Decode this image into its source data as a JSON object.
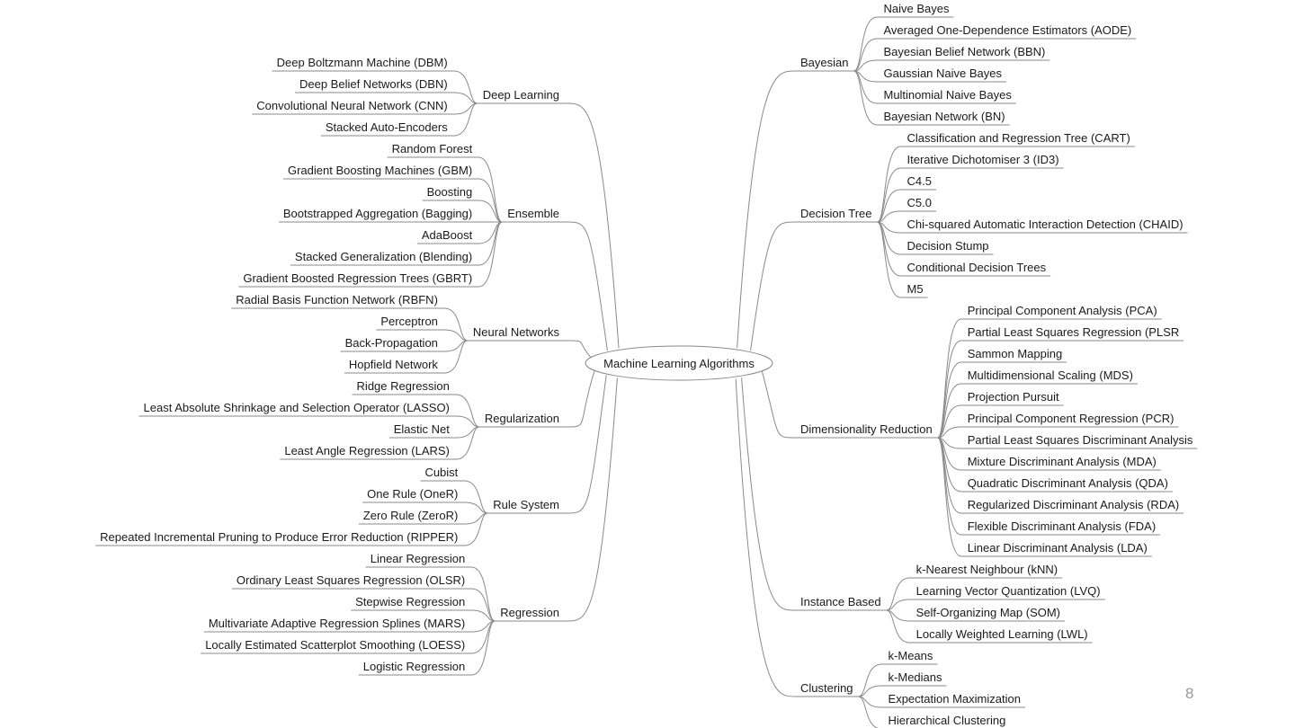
{
  "root": "Machine Learning Algorithms",
  "page_number": "8",
  "colors": {
    "line": "#8a8a8a",
    "text": "#1a1a1a"
  },
  "left": [
    {
      "label": "Deep Learning",
      "children": [
        "Deep Boltzmann Machine (DBM)",
        "Deep Belief Networks (DBN)",
        "Convolutional Neural Network (CNN)",
        "Stacked Auto-Encoders"
      ]
    },
    {
      "label": "Ensemble",
      "children": [
        "Random Forest",
        "Gradient Boosting Machines (GBM)",
        "Boosting",
        "Bootstrapped Aggregation (Bagging)",
        "AdaBoost",
        "Stacked Generalization (Blending)",
        "Gradient Boosted Regression Trees (GBRT)"
      ]
    },
    {
      "label": "Neural Networks",
      "children": [
        "Radial Basis Function Network (RBFN)",
        "Perceptron",
        "Back-Propagation",
        "Hopfield Network"
      ]
    },
    {
      "label": "Regularization",
      "children": [
        "Ridge Regression",
        "Least Absolute Shrinkage and Selection Operator (LASSO)",
        "Elastic Net",
        "Least Angle Regression (LARS)"
      ]
    },
    {
      "label": "Rule System",
      "children": [
        "Cubist",
        "One Rule (OneR)",
        "Zero Rule (ZeroR)",
        "Repeated Incremental Pruning to Produce Error Reduction (RIPPER)"
      ]
    },
    {
      "label": "Regression",
      "children": [
        "Linear Regression",
        "Ordinary Least Squares Regression (OLSR)",
        "Stepwise Regression",
        "Multivariate Adaptive Regression Splines (MARS)",
        "Locally Estimated Scatterplot Smoothing (LOESS)",
        "Logistic Regression"
      ]
    }
  ],
  "right": [
    {
      "label": "Bayesian",
      "children": [
        "Naive Bayes",
        "Averaged One-Dependence Estimators (AODE)",
        "Bayesian Belief Network (BBN)",
        "Gaussian Naive Bayes",
        "Multinomial Naive Bayes",
        "Bayesian Network (BN)"
      ]
    },
    {
      "label": "Decision Tree",
      "children": [
        "Classification and Regression Tree (CART)",
        "Iterative Dichotomiser 3 (ID3)",
        "C4.5",
        "C5.0",
        "Chi-squared Automatic Interaction Detection (CHAID)",
        "Decision Stump",
        "Conditional Decision Trees",
        "M5"
      ]
    },
    {
      "label": "Dimensionality Reduction",
      "children": [
        "Principal Component Analysis (PCA)",
        "Partial Least Squares Regression (PLSR",
        "Sammon Mapping",
        "Multidimensional Scaling (MDS)",
        "Projection Pursuit",
        "Principal Component Regression (PCR)",
        "Partial Least Squares Discriminant Analysis",
        "Mixture Discriminant Analysis (MDA)",
        "Quadratic Discriminant Analysis (QDA)",
        "Regularized Discriminant Analysis (RDA)",
        "Flexible Discriminant Analysis (FDA)",
        "Linear Discriminant Analysis (LDA)"
      ]
    },
    {
      "label": "Instance Based",
      "children": [
        "k-Nearest Neighbour (kNN)",
        "Learning Vector Quantization (LVQ)",
        "Self-Organizing Map (SOM)",
        "Locally Weighted Learning (LWL)"
      ]
    },
    {
      "label": "Clustering",
      "children": [
        "k-Means",
        "k-Medians",
        "Expectation Maximization",
        "Hierarchical Clustering"
      ]
    }
  ]
}
